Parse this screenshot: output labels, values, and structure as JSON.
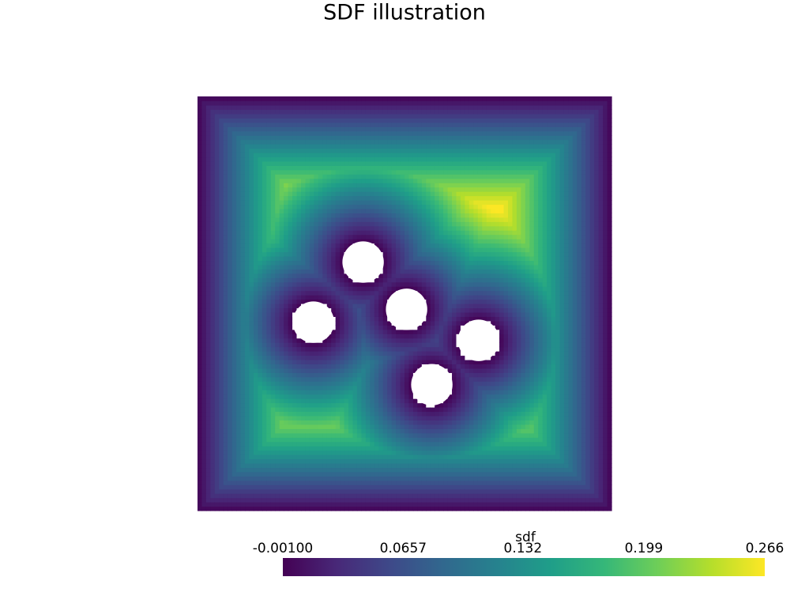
{
  "chart_data": {
    "type": "sdf-field",
    "title": "SDF illustration",
    "colorbar_label": "sdf",
    "clim": [
      -0.001,
      0.266
    ],
    "colorbar_ticks": [
      {
        "value": -0.001,
        "label": "-0.00100"
      },
      0.0657,
      0.132,
      0.199,
      0.266
    ],
    "colormap": [
      "#440154",
      "#482878",
      "#3e4989",
      "#31688e",
      "#26828e",
      "#1f9e89",
      "#35b779",
      "#6ece58",
      "#b5de2b",
      "#fde725"
    ],
    "xlim": [
      0,
      1
    ],
    "ylim": [
      0,
      1
    ],
    "holes": [
      {
        "x": 0.4,
        "y": 0.6,
        "r": 0.05
      },
      {
        "x": 0.28,
        "y": 0.455,
        "r": 0.05
      },
      {
        "x": 0.505,
        "y": 0.486,
        "r": 0.05
      },
      {
        "x": 0.679,
        "y": 0.411,
        "r": 0.05
      },
      {
        "x": 0.566,
        "y": 0.304,
        "r": 0.05
      }
    ]
  }
}
